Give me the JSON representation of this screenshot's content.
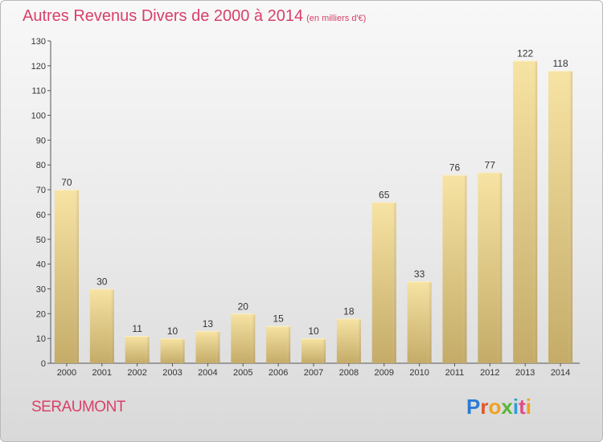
{
  "title": {
    "main": "Autres Revenus Divers de 2000 à 2014",
    "unit": "(en milliers d'€)"
  },
  "commune": "SERAUMONT",
  "brand": {
    "text": "Proxiti"
  },
  "colors": {
    "title": "#d9406a",
    "bar_light": "#f6e0a0",
    "bar_dark": "#c5ad6a"
  },
  "chart_data": {
    "type": "bar",
    "title": "Autres Revenus Divers de 2000 à 2014",
    "subtitle": "(en milliers d'€)",
    "categories": [
      "2000",
      "2001",
      "2002",
      "2003",
      "2004",
      "2005",
      "2006",
      "2007",
      "2008",
      "2009",
      "2010",
      "2011",
      "2012",
      "2013",
      "2014"
    ],
    "values": [
      70,
      30,
      11,
      10,
      13,
      20,
      15,
      10,
      18,
      65,
      33,
      76,
      77,
      122,
      118
    ],
    "ylim": [
      0,
      130
    ],
    "yticks": [
      0,
      10,
      20,
      30,
      40,
      50,
      60,
      70,
      80,
      90,
      100,
      110,
      120,
      130
    ],
    "grid": false,
    "data_labels": true
  }
}
